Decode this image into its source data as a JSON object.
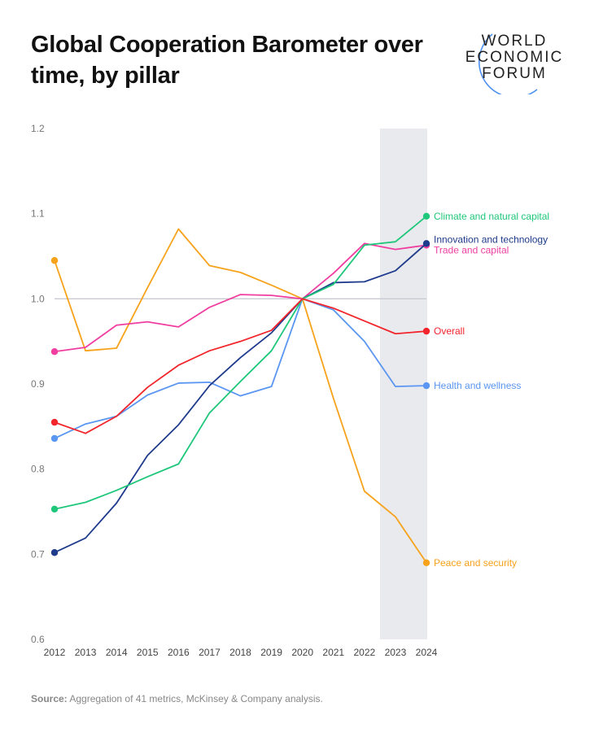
{
  "title": "Global Cooperation Barometer over time, by pillar",
  "logo": {
    "lines": [
      "WORLD",
      "ECONOMIC",
      "FORUM"
    ],
    "accent": "#4a90f0"
  },
  "source": {
    "label": "Source:",
    "text": " Aggregation of 41 metrics, McKinsey & Company analysis."
  },
  "chart_data": {
    "type": "line",
    "x": [
      2012,
      2013,
      2014,
      2015,
      2016,
      2017,
      2018,
      2019,
      2020,
      2021,
      2022,
      2023,
      2024
    ],
    "ylim": [
      0.6,
      1.2
    ],
    "yticks": [
      "0.6",
      "0.7",
      "0.8",
      "0.9",
      "1.0",
      "1.1",
      "1.2"
    ],
    "reference_line": 1.0,
    "shaded_range": [
      2023,
      2024
    ],
    "grid": false,
    "legend": "end-of-line labels",
    "series": [
      {
        "name": "Peace and security",
        "color": "#f7a21b",
        "values": [
          1.045,
          0.939,
          0.942,
          1.013,
          1.082,
          1.039,
          1.031,
          1.016,
          1.0,
          0.883,
          0.774,
          0.744,
          0.69
        ]
      },
      {
        "name": "Trade and capital",
        "color": "#f03ea0",
        "values": [
          0.938,
          0.943,
          0.969,
          0.973,
          0.967,
          0.99,
          1.005,
          1.004,
          1.0,
          1.03,
          1.065,
          1.058,
          1.063
        ]
      },
      {
        "name": "Health and wellness",
        "color": "#5a96f2",
        "values": [
          0.836,
          0.853,
          0.862,
          0.887,
          0.901,
          0.902,
          0.886,
          0.897,
          1.0,
          0.987,
          0.95,
          0.897,
          0.898
        ]
      },
      {
        "name": "Innovation and technology",
        "color": "#1f3b8c",
        "values": [
          0.702,
          0.719,
          0.76,
          0.816,
          0.852,
          0.898,
          0.931,
          0.96,
          1.0,
          1.019,
          1.02,
          1.033,
          1.065
        ]
      },
      {
        "name": "Climate and natural capital",
        "color": "#1ec77a",
        "values": [
          0.753,
          0.761,
          0.775,
          0.791,
          0.806,
          0.866,
          0.903,
          0.939,
          1.0,
          1.017,
          1.063,
          1.067,
          1.097
        ]
      },
      {
        "name": "Overall",
        "color": "#f2242c",
        "values": [
          0.855,
          0.842,
          0.862,
          0.896,
          0.922,
          0.939,
          0.95,
          0.963,
          1.0,
          0.989,
          0.974,
          0.959,
          0.962
        ]
      }
    ]
  }
}
